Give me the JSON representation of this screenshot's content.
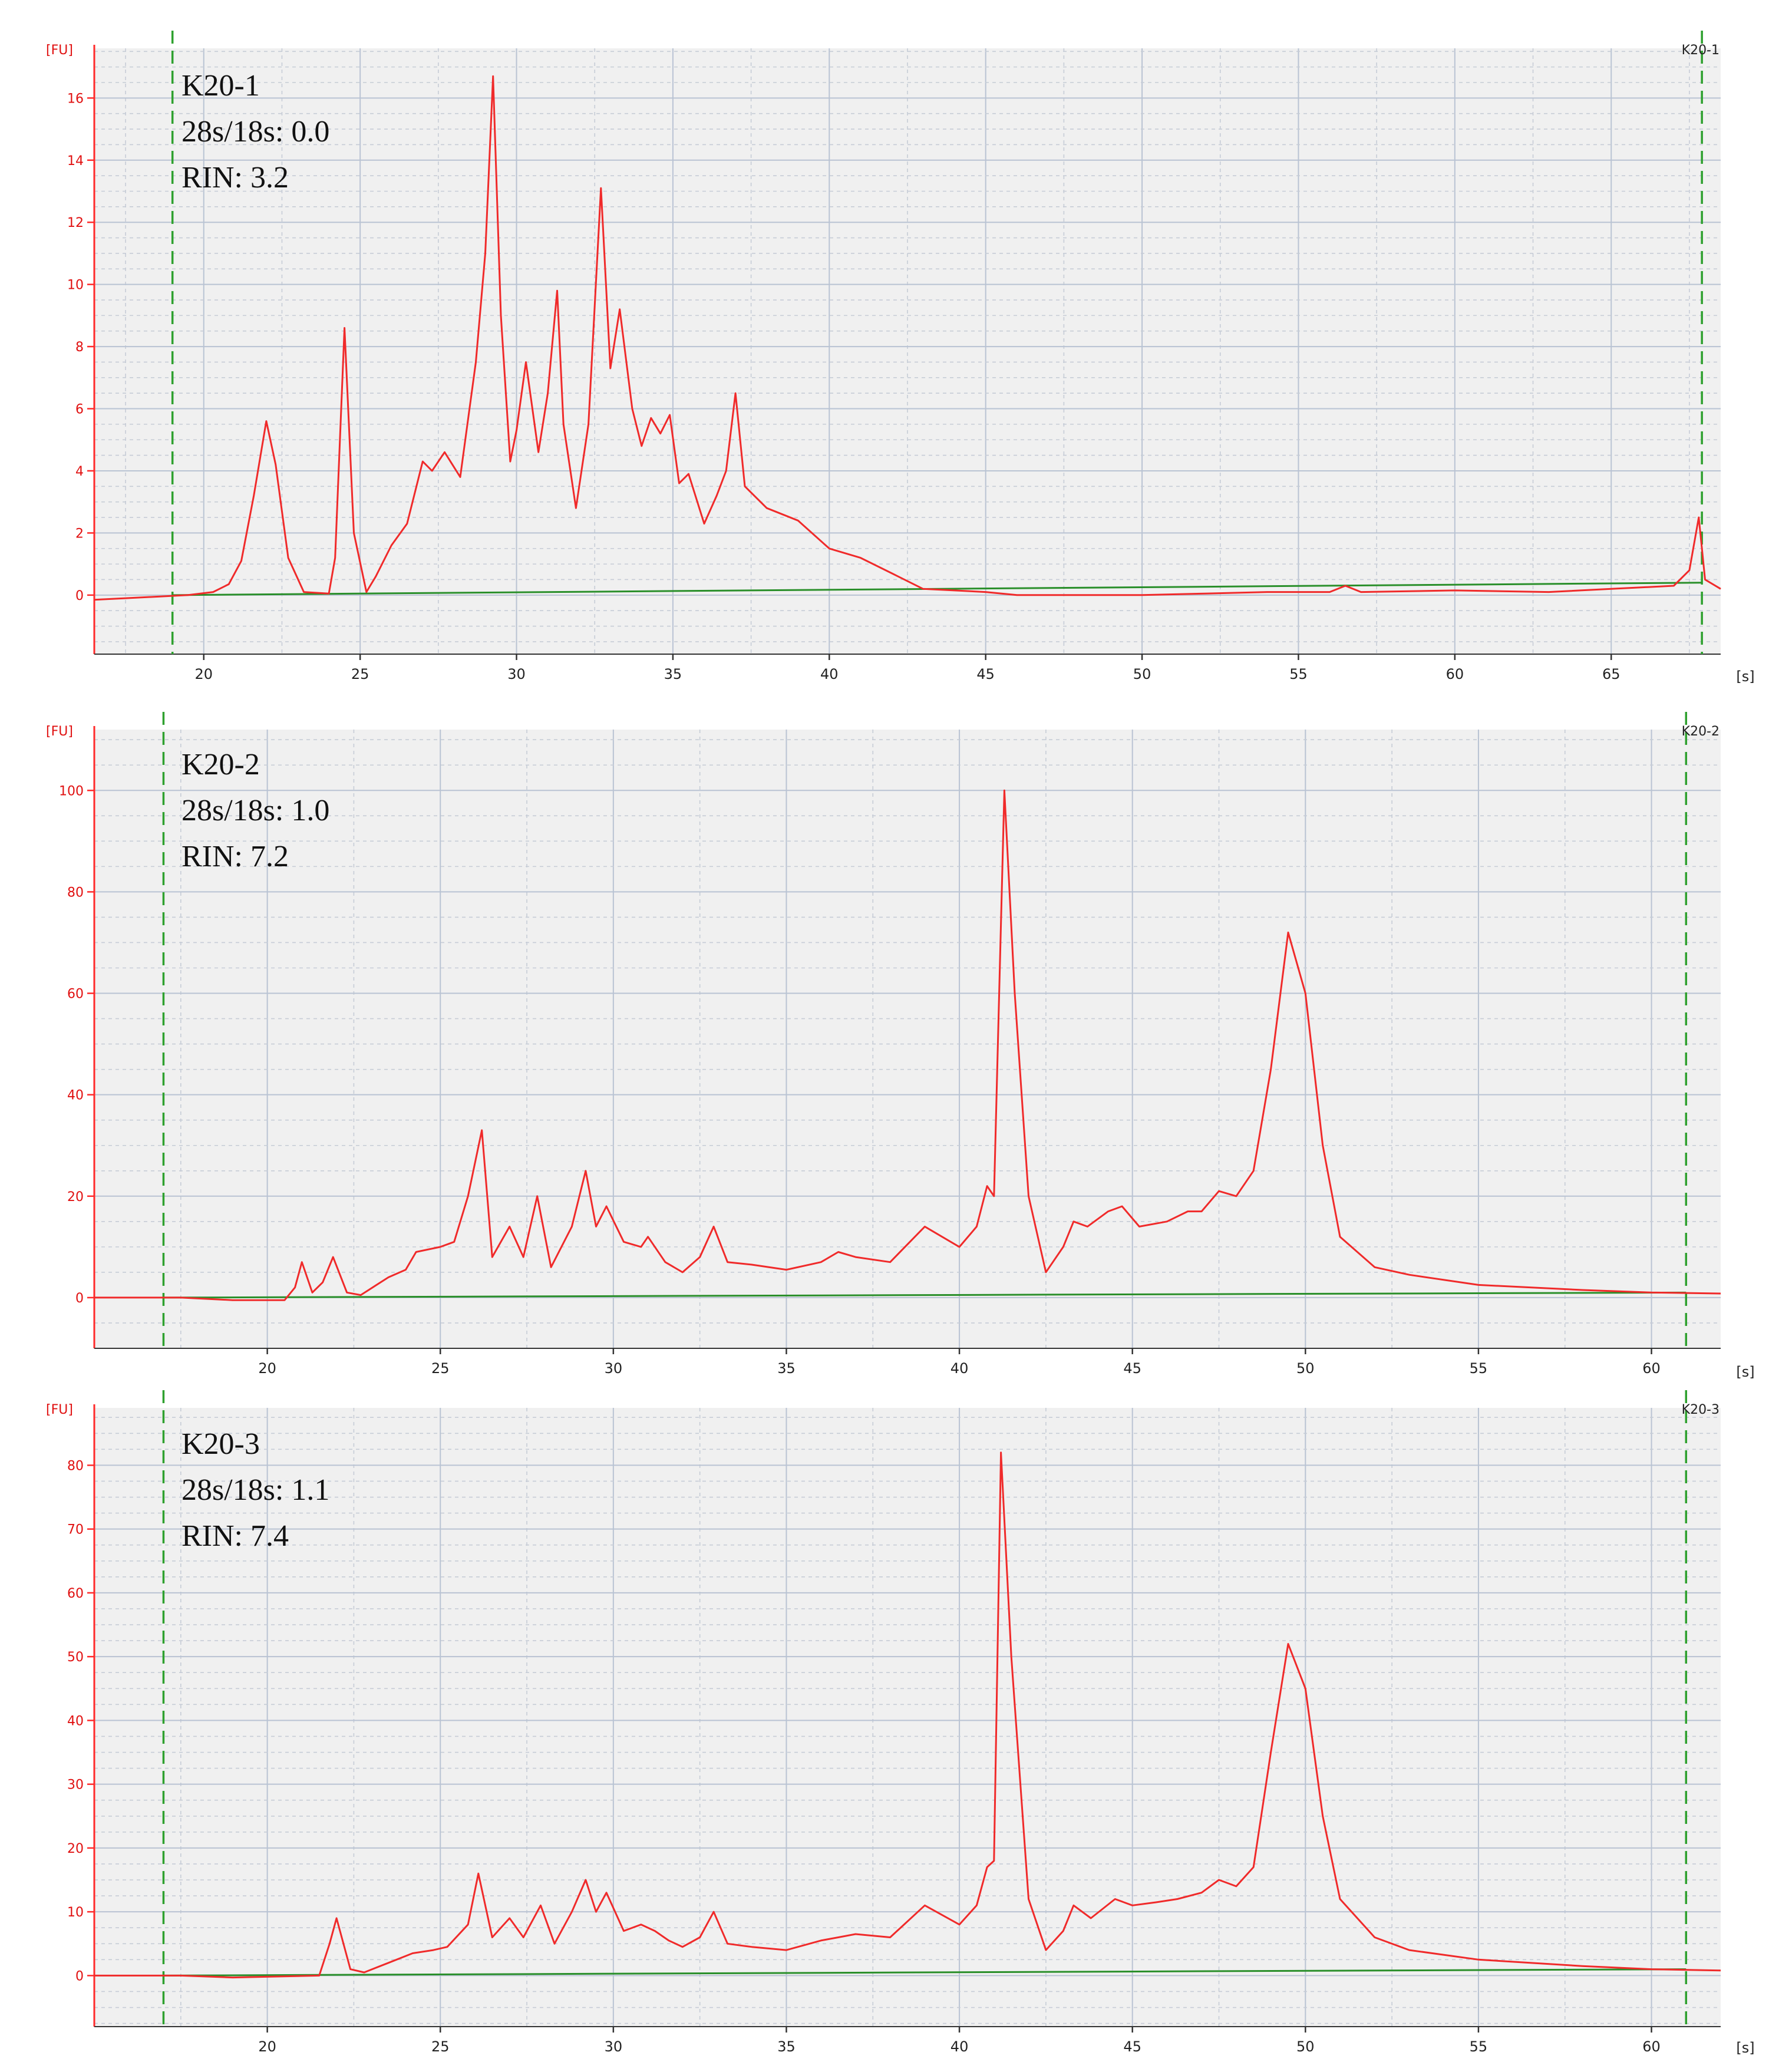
{
  "chart_data": [
    {
      "type": "line",
      "sample_tag": "K20-1",
      "annotations": [
        "K20-1",
        "28s/18s: 0.0",
        "RIN: 3.2"
      ],
      "y_unit": "[FU]",
      "x_unit": "[s]",
      "xlim": [
        16.5,
        68.5
      ],
      "ylim": [
        -1.9,
        17.6
      ],
      "x_ticks": [
        20,
        25,
        30,
        35,
        40,
        45,
        50,
        55,
        60,
        65
      ],
      "y_ticks": [
        0,
        2,
        4,
        6,
        8,
        10,
        12,
        14,
        16
      ],
      "markers_x": [
        19.0,
        67.9
      ],
      "baseline": [
        [
          19.0,
          0.0
        ],
        [
          67.9,
          0.4
        ]
      ],
      "points": [
        [
          16.5,
          -0.15
        ],
        [
          17.5,
          -0.1
        ],
        [
          18.5,
          -0.05
        ],
        [
          19.5,
          0.0
        ],
        [
          20.3,
          0.1
        ],
        [
          20.8,
          0.35
        ],
        [
          21.2,
          1.1
        ],
        [
          21.6,
          3.2
        ],
        [
          22.0,
          5.6
        ],
        [
          22.3,
          4.2
        ],
        [
          22.7,
          1.2
        ],
        [
          23.2,
          0.1
        ],
        [
          24.0,
          0.05
        ],
        [
          24.2,
          1.2
        ],
        [
          24.5,
          8.6
        ],
        [
          24.8,
          2.0
        ],
        [
          25.2,
          0.1
        ],
        [
          25.5,
          0.6
        ],
        [
          26.0,
          1.6
        ],
        [
          26.5,
          2.3
        ],
        [
          27.0,
          4.3
        ],
        [
          27.3,
          4.0
        ],
        [
          27.7,
          4.6
        ],
        [
          28.2,
          3.8
        ],
        [
          28.7,
          7.5
        ],
        [
          29.0,
          11.0
        ],
        [
          29.25,
          16.7
        ],
        [
          29.5,
          9.0
        ],
        [
          29.8,
          4.3
        ],
        [
          30.0,
          5.3
        ],
        [
          30.3,
          7.5
        ],
        [
          30.7,
          4.6
        ],
        [
          31.0,
          6.5
        ],
        [
          31.3,
          9.8
        ],
        [
          31.5,
          5.5
        ],
        [
          31.9,
          2.8
        ],
        [
          32.3,
          5.5
        ],
        [
          32.7,
          13.1
        ],
        [
          33.0,
          7.3
        ],
        [
          33.3,
          9.2
        ],
        [
          33.7,
          6.0
        ],
        [
          34.0,
          4.8
        ],
        [
          34.3,
          5.7
        ],
        [
          34.6,
          5.2
        ],
        [
          34.9,
          5.8
        ],
        [
          35.2,
          3.6
        ],
        [
          35.5,
          3.9
        ],
        [
          36.0,
          2.3
        ],
        [
          36.4,
          3.2
        ],
        [
          36.7,
          4.0
        ],
        [
          37.0,
          6.5
        ],
        [
          37.3,
          3.5
        ],
        [
          38.0,
          2.8
        ],
        [
          39.0,
          2.4
        ],
        [
          40.0,
          1.5
        ],
        [
          41.0,
          1.2
        ],
        [
          42.0,
          0.7
        ],
        [
          43.0,
          0.2
        ],
        [
          44.0,
          0.15
        ],
        [
          45.0,
          0.1
        ],
        [
          46.0,
          0.0
        ],
        [
          48.0,
          0.0
        ],
        [
          50.0,
          0.0
        ],
        [
          52.0,
          0.05
        ],
        [
          54.0,
          0.1
        ],
        [
          56.0,
          0.1
        ],
        [
          56.5,
          0.3
        ],
        [
          57.0,
          0.1
        ],
        [
          60.0,
          0.15
        ],
        [
          63.0,
          0.1
        ],
        [
          65.0,
          0.2
        ],
        [
          67.0,
          0.3
        ],
        [
          67.5,
          0.8
        ],
        [
          67.8,
          2.5
        ],
        [
          68.0,
          0.5
        ],
        [
          68.5,
          0.2
        ]
      ]
    },
    {
      "type": "line",
      "sample_tag": "K20-2",
      "annotations": [
        "K20-2",
        "28s/18s: 1.0",
        "RIN: 7.2"
      ],
      "y_unit": "[FU]",
      "x_unit": "[s]",
      "xlim": [
        15.0,
        62.0
      ],
      "ylim": [
        -10.0,
        112.0
      ],
      "x_ticks": [
        20,
        25,
        30,
        35,
        40,
        45,
        50,
        55,
        60
      ],
      "y_ticks": [
        0,
        20,
        40,
        60,
        80,
        100
      ],
      "markers_x": [
        17.0,
        61.0
      ],
      "baseline": [
        [
          17.0,
          0.0
        ],
        [
          61.0,
          1.0
        ]
      ],
      "points": [
        [
          15.0,
          0.0
        ],
        [
          17.5,
          0.0
        ],
        [
          19.0,
          -0.5
        ],
        [
          20.5,
          -0.5
        ],
        [
          20.8,
          2.0
        ],
        [
          21.0,
          7.0
        ],
        [
          21.3,
          1.0
        ],
        [
          21.6,
          3.0
        ],
        [
          21.9,
          8.0
        ],
        [
          22.3,
          1.0
        ],
        [
          22.7,
          0.5
        ],
        [
          23.5,
          4.0
        ],
        [
          24.0,
          5.5
        ],
        [
          24.3,
          9.0
        ],
        [
          25.0,
          10.0
        ],
        [
          25.4,
          11.0
        ],
        [
          25.8,
          20.0
        ],
        [
          26.2,
          33.0
        ],
        [
          26.5,
          8.0
        ],
        [
          27.0,
          14.0
        ],
        [
          27.4,
          8.0
        ],
        [
          27.8,
          20.0
        ],
        [
          28.2,
          6.0
        ],
        [
          28.8,
          14.0
        ],
        [
          29.2,
          25.0
        ],
        [
          29.5,
          14.0
        ],
        [
          29.8,
          18.0
        ],
        [
          30.3,
          11.0
        ],
        [
          30.8,
          10.0
        ],
        [
          31.0,
          12.0
        ],
        [
          31.5,
          7.0
        ],
        [
          32.0,
          5.0
        ],
        [
          32.5,
          8.0
        ],
        [
          32.9,
          14.0
        ],
        [
          33.3,
          7.0
        ],
        [
          34.0,
          6.5
        ],
        [
          35.0,
          5.5
        ],
        [
          36.0,
          7.0
        ],
        [
          36.5,
          9.0
        ],
        [
          37.0,
          8.0
        ],
        [
          38.0,
          7.0
        ],
        [
          39.0,
          14.0
        ],
        [
          40.0,
          10.0
        ],
        [
          40.5,
          14.0
        ],
        [
          40.8,
          22.0
        ],
        [
          41.0,
          20.0
        ],
        [
          41.3,
          100.0
        ],
        [
          41.6,
          60.0
        ],
        [
          42.0,
          20.0
        ],
        [
          42.5,
          5.0
        ],
        [
          43.0,
          10.0
        ],
        [
          43.3,
          15.0
        ],
        [
          43.7,
          14.0
        ],
        [
          44.3,
          17.0
        ],
        [
          44.7,
          18.0
        ],
        [
          45.2,
          14.0
        ],
        [
          46.0,
          15.0
        ],
        [
          46.6,
          17.0
        ],
        [
          47.0,
          17.0
        ],
        [
          47.5,
          21.0
        ],
        [
          48.0,
          20.0
        ],
        [
          48.5,
          25.0
        ],
        [
          49.0,
          45.0
        ],
        [
          49.5,
          72.0
        ],
        [
          50.0,
          60.0
        ],
        [
          50.5,
          30.0
        ],
        [
          51.0,
          12.0
        ],
        [
          52.0,
          6.0
        ],
        [
          53.0,
          4.5
        ],
        [
          55.0,
          2.5
        ],
        [
          58.0,
          1.5
        ],
        [
          60.0,
          1.0
        ],
        [
          62.0,
          0.8
        ]
      ]
    },
    {
      "type": "line",
      "sample_tag": "K20-3",
      "annotations": [
        "K20-3",
        "28s/18s: 1.1",
        "RIN: 7.4"
      ],
      "y_unit": "[FU]",
      "x_unit": "[s]",
      "xlim": [
        15.0,
        62.0
      ],
      "ylim": [
        -8.0,
        89.0
      ],
      "x_ticks": [
        20,
        25,
        30,
        35,
        40,
        45,
        50,
        55,
        60
      ],
      "y_ticks": [
        0,
        10,
        20,
        30,
        40,
        50,
        60,
        70,
        80
      ],
      "markers_x": [
        17.0,
        61.0
      ],
      "baseline": [
        [
          17.0,
          0.0
        ],
        [
          61.0,
          1.0
        ]
      ],
      "points": [
        [
          15.0,
          0.0
        ],
        [
          17.5,
          0.0
        ],
        [
          19.0,
          -0.3
        ],
        [
          21.5,
          0.0
        ],
        [
          21.8,
          5.0
        ],
        [
          22.0,
          9.0
        ],
        [
          22.4,
          1.0
        ],
        [
          22.8,
          0.5
        ],
        [
          23.5,
          2.0
        ],
        [
          24.2,
          3.5
        ],
        [
          24.8,
          4.0
        ],
        [
          25.2,
          4.5
        ],
        [
          25.8,
          8.0
        ],
        [
          26.1,
          16.0
        ],
        [
          26.5,
          6.0
        ],
        [
          27.0,
          9.0
        ],
        [
          27.4,
          6.0
        ],
        [
          27.9,
          11.0
        ],
        [
          28.3,
          5.0
        ],
        [
          28.8,
          10.0
        ],
        [
          29.2,
          15.0
        ],
        [
          29.5,
          10.0
        ],
        [
          29.8,
          13.0
        ],
        [
          30.3,
          7.0
        ],
        [
          30.8,
          8.0
        ],
        [
          31.2,
          7.0
        ],
        [
          31.6,
          5.5
        ],
        [
          32.0,
          4.5
        ],
        [
          32.5,
          6.0
        ],
        [
          32.9,
          10.0
        ],
        [
          33.3,
          5.0
        ],
        [
          34.0,
          4.5
        ],
        [
          35.0,
          4.0
        ],
        [
          36.0,
          5.5
        ],
        [
          36.5,
          6.0
        ],
        [
          37.0,
          6.5
        ],
        [
          38.0,
          6.0
        ],
        [
          39.0,
          11.0
        ],
        [
          40.0,
          8.0
        ],
        [
          40.5,
          11.0
        ],
        [
          40.8,
          17.0
        ],
        [
          41.0,
          18.0
        ],
        [
          41.2,
          82.0
        ],
        [
          41.5,
          50.0
        ],
        [
          42.0,
          12.0
        ],
        [
          42.5,
          4.0
        ],
        [
          43.0,
          7.0
        ],
        [
          43.3,
          11.0
        ],
        [
          43.8,
          9.0
        ],
        [
          44.5,
          12.0
        ],
        [
          45.0,
          11.0
        ],
        [
          45.7,
          11.5
        ],
        [
          46.3,
          12.0
        ],
        [
          47.0,
          13.0
        ],
        [
          47.5,
          15.0
        ],
        [
          48.0,
          14.0
        ],
        [
          48.5,
          17.0
        ],
        [
          49.0,
          35.0
        ],
        [
          49.5,
          52.0
        ],
        [
          50.0,
          45.0
        ],
        [
          50.5,
          25.0
        ],
        [
          51.0,
          12.0
        ],
        [
          52.0,
          6.0
        ],
        [
          53.0,
          4.0
        ],
        [
          55.0,
          2.5
        ],
        [
          58.0,
          1.5
        ],
        [
          60.0,
          1.0
        ],
        [
          62.0,
          0.8
        ]
      ]
    }
  ]
}
